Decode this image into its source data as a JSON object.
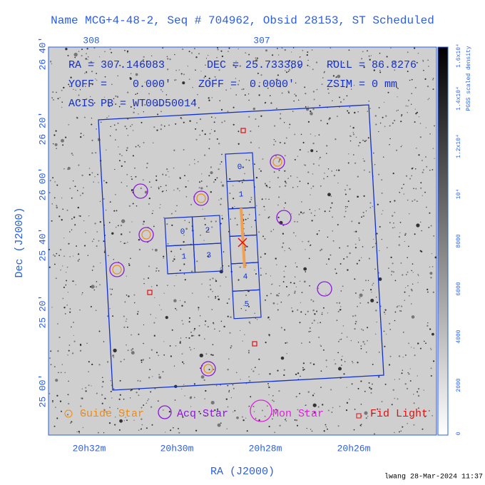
{
  "title": "Name MCG+4-48-2, Seq # 704962, Obsid 28153, ST Scheduled",
  "header": {
    "ra": "RA = 307.146083",
    "dec": "DEC = 25.733389",
    "roll": "ROLL = 86.8276",
    "yoff": "YOFF =    0.000'",
    "zoff": "ZOFF =  0.0000'",
    "zsim": "ZSIM = 0 mm",
    "acis_pb": "ACIS PB = WT00D50014"
  },
  "top_axis": {
    "ticks": [
      "308",
      "307"
    ]
  },
  "left_axis": {
    "label": "Dec (J2000)",
    "ticks": [
      "26 40'",
      "26 20'",
      "26 00'",
      "25 40'",
      "25 20'",
      "25 00'"
    ]
  },
  "bottom_axis": {
    "label": "RA (J2000)",
    "ticks": [
      "20h32m",
      "20h30m",
      "20h28m",
      "20h26m"
    ]
  },
  "colorbar": {
    "label": "PGSS scaled density",
    "ticks": [
      "0",
      "2000",
      "4000",
      "6000",
      "8000",
      "10⁴",
      "1.2x10⁴",
      "1.4x10⁴",
      "1.6x10⁴"
    ]
  },
  "chips": {
    "acis_s": [
      "0",
      "1",
      "2",
      "3",
      "4",
      "5"
    ],
    "acis_i": [
      "0",
      "2",
      "1",
      "3"
    ]
  },
  "legend": {
    "guide": "Guide Star",
    "acq": "Acq Star",
    "mon": "Mon Star",
    "fid": "Fid Light"
  },
  "footer": "lwang 28-Mar-2024 11:37"
}
